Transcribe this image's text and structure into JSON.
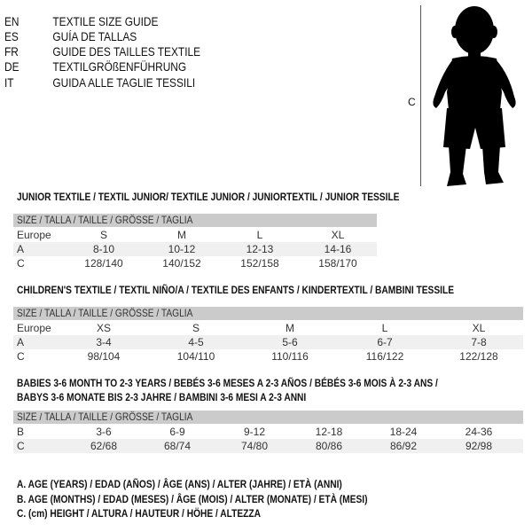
{
  "languages": [
    {
      "code": "EN",
      "text": "TEXTILE SIZE GUIDE"
    },
    {
      "code": "ES",
      "text": "GUÍA DE TALLAS"
    },
    {
      "code": "FR",
      "text": "GUIDE DES TAILLES TEXTILE"
    },
    {
      "code": "DE",
      "text": "TEXTILGRÖßENFÜHRUNG"
    },
    {
      "code": "IT",
      "text": "GUIDA ALLE TAGLIE TESSILI"
    }
  ],
  "figure": {
    "label": "C",
    "icon": "child-silhouette"
  },
  "junior": {
    "title": "JUNIOR TEXTILE / TEXTIL JUNIOR/ TEXTILE JUNIOR / JUNIORTEXTIL / JUNIOR TESSILE",
    "header": "SIZE / TALLA / TAILLE / GRÖSSE / TAGLIA",
    "rows": [
      {
        "label": "Europe",
        "cells": [
          "S",
          "M",
          "L",
          "XL"
        ]
      },
      {
        "label": "A",
        "cells": [
          "8-10",
          "10-12",
          "12-13",
          "14-16"
        ]
      },
      {
        "label": "C",
        "cells": [
          "128/140",
          "140/152",
          "152/158",
          "158/170"
        ]
      }
    ]
  },
  "children": {
    "title": "CHILDREN'S TEXTILE / TEXTIL NIÑO/A / TEXTILE DES ENFANTS / KINDERTEXTIL / BAMBINI TESSILE",
    "header": "SIZE / TALLA / TAILLE / GRÖSSE / TAGLIA",
    "rows": [
      {
        "label": "Europe",
        "cells": [
          "XS",
          "S",
          "M",
          "L",
          "XL"
        ]
      },
      {
        "label": "A",
        "cells": [
          "3-4",
          "4-5",
          "5-6",
          "6-7",
          "7-8"
        ]
      },
      {
        "label": "C",
        "cells": [
          "98/104",
          "104/110",
          "110/116",
          "116/122",
          "122/128"
        ]
      }
    ]
  },
  "babies": {
    "title1": "BABIES 3-6 MONTH TO 2-3 YEARS / BEBÉS 3-6 MESES A 2-3 AÑOS / BÉBÉS 3-6 MOIS À 2-3 ANS /",
    "title2": "BABYS 3-6 MONATE BIS 2-3 JAHRE / BAMBINI 3-6 MESI A 2-3 ANNI",
    "header": "SIZE / TALLA / TAILLE / GRÖSSE / TAGLIA",
    "rows": [
      {
        "label": "B",
        "cells": [
          "3-6",
          "6-9",
          "9-12",
          "12-18",
          "18-24",
          "24-36"
        ]
      },
      {
        "label": "C",
        "cells": [
          "62/68",
          "68/74",
          "74/80",
          "80/86",
          "86/92",
          "92/98"
        ]
      }
    ]
  },
  "legend": [
    "A. AGE (YEARS) / EDAD (AÑOS) / ÂGE (ANS) / ALTER (JAHRE) / ETÀ (ANNI)",
    "B. AGE (MONTHS) / EDAD (MESES) / ÂGE (MOIS) / ALTER (MONATE) / ETÀ (MESI)",
    "C. (cm) HEIGHT / ALTURA / HAUTEUR / HÖHE / ALTEZZA"
  ]
}
